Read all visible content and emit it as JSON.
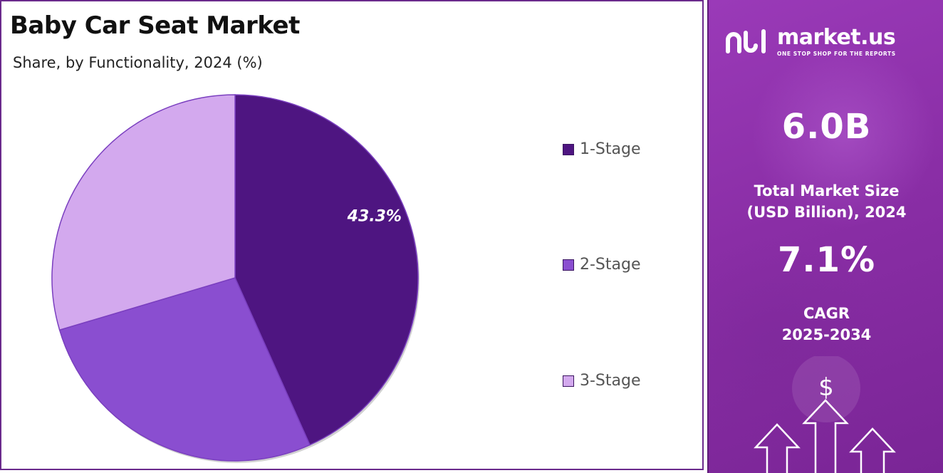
{
  "header": {
    "title": "Baby Car Seat Market",
    "subtitle": "Share, by Functionality, 2024 (%)"
  },
  "chart_data": {
    "type": "pie",
    "title": "Baby Car Seat Market",
    "subtitle": "Share, by Functionality, 2024 (%)",
    "categories": [
      "1-Stage",
      "2-Stage",
      "3-Stage"
    ],
    "values": [
      43.3,
      27.1,
      29.6
    ],
    "colors": [
      "#4e1581",
      "#8a4ed0",
      "#d3a9ee"
    ],
    "data_labels": [
      "43.3%",
      "",
      ""
    ],
    "legend_position": "right",
    "start_angle_deg": 0,
    "direction": "clockwise"
  },
  "sidebar": {
    "brand_name": "market.us",
    "tagline": "ONE STOP SHOP FOR THE REPORTS",
    "market_size_value": "6.0B",
    "market_size_label_line1": "Total Market Size",
    "market_size_label_line2": "(USD Billion), 2024",
    "cagr_value": "7.1%",
    "cagr_label_line1": "CAGR",
    "cagr_label_line2": "2025-2034",
    "currency_symbol": "$",
    "colors": {
      "panel_top": "#9a3ab8",
      "panel_bottom": "#7a2596"
    }
  }
}
